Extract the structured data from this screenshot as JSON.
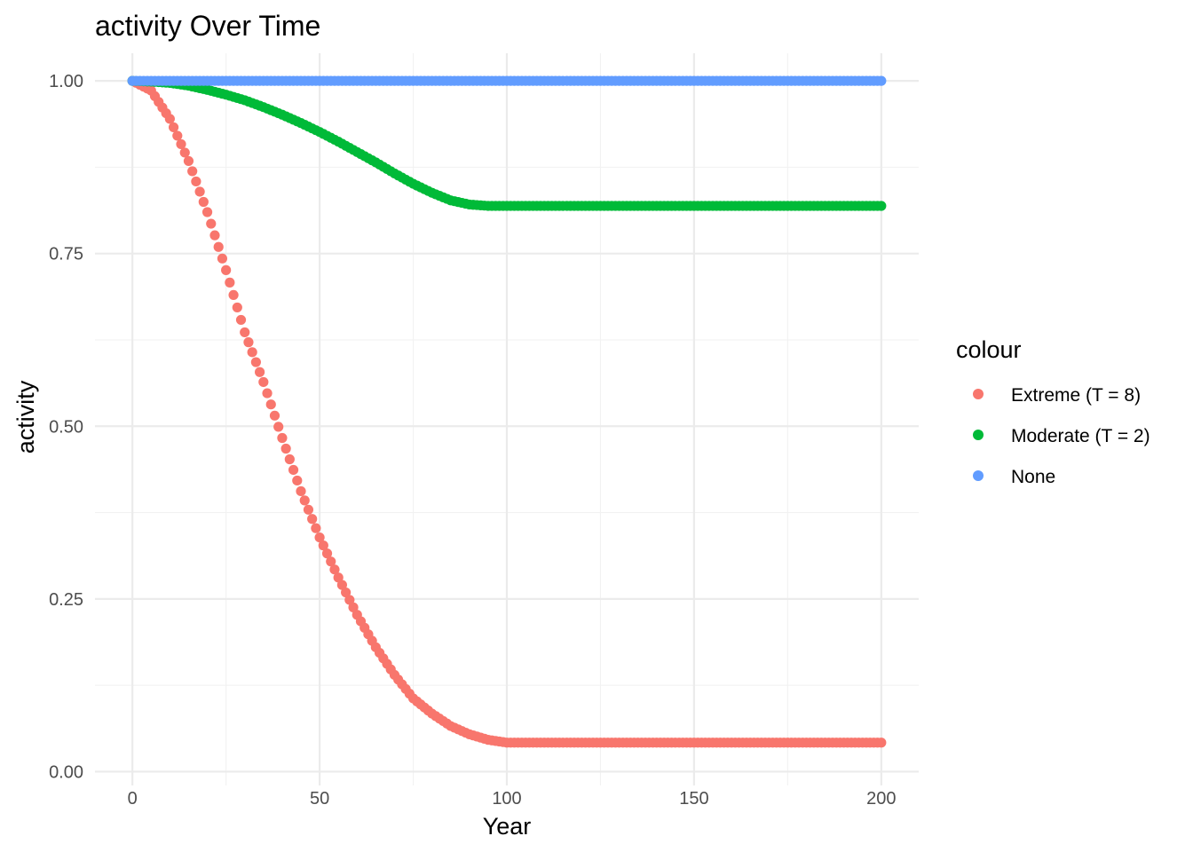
{
  "chart_data": {
    "type": "scatter",
    "title": "activity Over Time",
    "xlabel": "Year",
    "ylabel": "activity",
    "xlim": [
      -10,
      210
    ],
    "ylim": [
      -0.02,
      1.04
    ],
    "x_ticks": [
      0,
      50,
      100,
      150,
      200
    ],
    "x_tick_labels": [
      "0",
      "50",
      "100",
      "150",
      "200"
    ],
    "y_ticks": [
      0,
      0.25,
      0.5,
      0.75,
      1.0
    ],
    "y_tick_labels": [
      "0.00",
      "0.25",
      "0.50",
      "0.75",
      "1.00"
    ],
    "grid": true,
    "legend": {
      "title": "colour",
      "position": "right"
    },
    "series": [
      {
        "name": "Extreme (T = 8)",
        "color": "#F8766D",
        "x": [
          0,
          5,
          10,
          15,
          20,
          25,
          30,
          35,
          40,
          45,
          50,
          55,
          60,
          65,
          70,
          75,
          80,
          85,
          90,
          95,
          100,
          110,
          120,
          130,
          140,
          150,
          160,
          170,
          180,
          190,
          200
        ],
        "y": [
          1.0,
          0.986,
          0.945,
          0.884,
          0.81,
          0.726,
          0.636,
          0.564,
          0.483,
          0.406,
          0.339,
          0.281,
          0.227,
          0.18,
          0.14,
          0.106,
          0.084,
          0.066,
          0.054,
          0.046,
          0.042,
          0.042,
          0.042,
          0.042,
          0.042,
          0.042,
          0.042,
          0.042,
          0.042,
          0.042,
          0.042
        ]
      },
      {
        "name": "Moderate (T = 2)",
        "color": "#00BA38",
        "x": [
          0,
          5,
          10,
          15,
          20,
          25,
          30,
          35,
          40,
          45,
          50,
          55,
          60,
          65,
          70,
          75,
          80,
          85,
          90,
          95,
          100,
          110,
          120,
          130,
          140,
          150,
          160,
          170,
          180,
          190,
          200
        ],
        "y": [
          1.0,
          0.999,
          0.997,
          0.993,
          0.987,
          0.98,
          0.972,
          0.962,
          0.951,
          0.939,
          0.926,
          0.912,
          0.897,
          0.882,
          0.866,
          0.851,
          0.838,
          0.827,
          0.821,
          0.819,
          0.819,
          0.819,
          0.819,
          0.819,
          0.819,
          0.819,
          0.819,
          0.819,
          0.819,
          0.819,
          0.819
        ]
      },
      {
        "name": "None",
        "color": "#619CFF",
        "x": [
          0,
          50,
          100,
          150,
          200
        ],
        "y": [
          1.0,
          1.0,
          1.0,
          1.0,
          1.0
        ]
      }
    ]
  }
}
